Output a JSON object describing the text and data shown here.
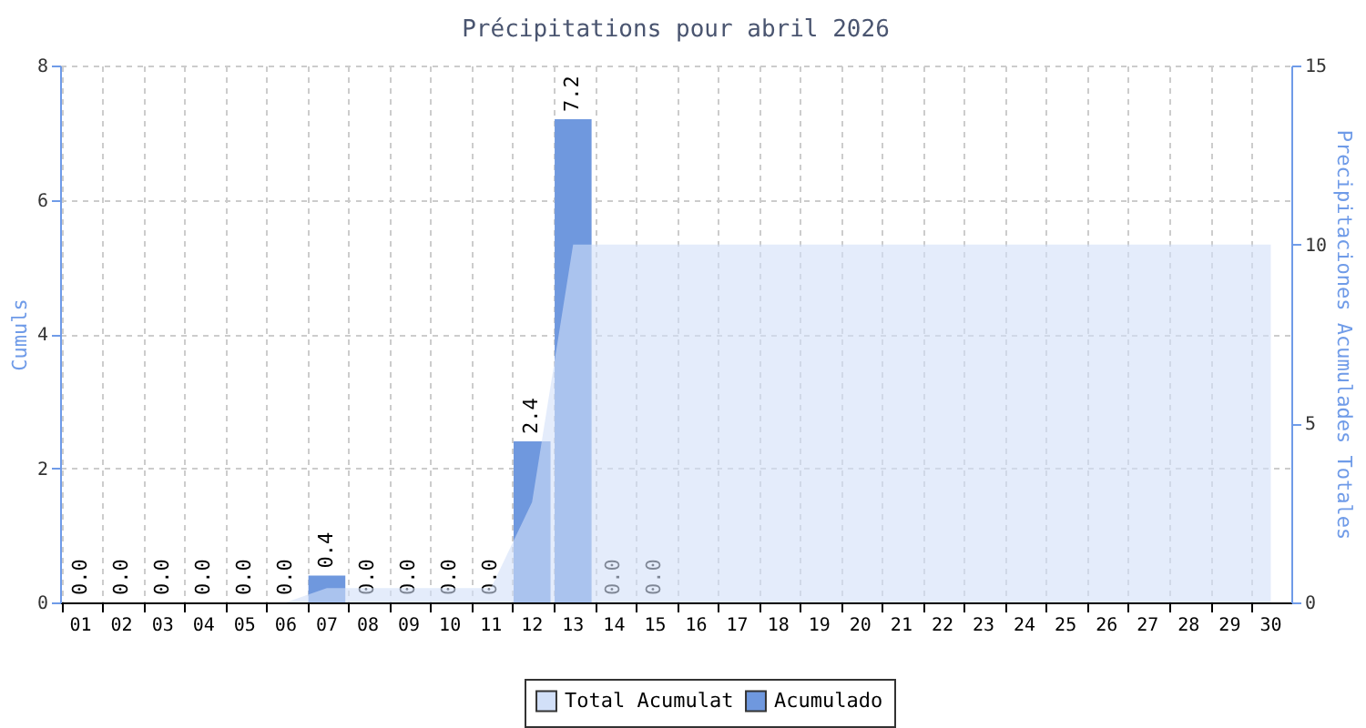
{
  "chart_data": {
    "type": "bar",
    "title": "Précipitations pour abril 2026",
    "ylabel": "Cumuls",
    "y2label": "Precipitaciones Acumulades Totales",
    "categories": [
      "01",
      "02",
      "03",
      "04",
      "05",
      "06",
      "07",
      "08",
      "09",
      "10",
      "11",
      "12",
      "13",
      "14",
      "15",
      "16",
      "17",
      "18",
      "19",
      "20",
      "21",
      "22",
      "23",
      "24",
      "25",
      "26",
      "27",
      "28",
      "29",
      "30"
    ],
    "series": [
      {
        "name": "Total Acumulat",
        "type": "area",
        "axis": "y2",
        "color": "#d2e0f8",
        "values": [
          0,
          0,
          0,
          0,
          0,
          0,
          0.4,
          0.4,
          0.4,
          0.4,
          0.4,
          2.8,
          10,
          10,
          10,
          10,
          10,
          10,
          10,
          10,
          10,
          10,
          10,
          10,
          10,
          10,
          10,
          10,
          10,
          10
        ]
      },
      {
        "name": "Acumulado",
        "color": "#6f98de",
        "values": [
          0,
          0,
          0,
          0,
          0,
          0,
          0.4,
          0,
          0,
          0,
          0,
          2.4,
          7.2,
          0,
          0,
          null,
          null,
          null,
          null,
          null,
          null,
          null,
          null,
          null,
          null,
          null,
          null,
          null,
          null,
          null
        ],
        "value_labels": [
          "0.0",
          "0.0",
          "0.0",
          "0.0",
          "0.0",
          "0.0",
          "0.4",
          "0.0",
          "0.0",
          "0.0",
          "0.0",
          "2.4",
          "7.2",
          "0.0",
          "0.0",
          null,
          null,
          null,
          null,
          null,
          null,
          null,
          null,
          null,
          null,
          null,
          null,
          null,
          null,
          null
        ]
      }
    ],
    "ylim": [
      0,
      8
    ],
    "yticks": [
      0,
      2,
      4,
      6,
      8
    ],
    "y2lim": [
      0,
      15
    ],
    "y2ticks": [
      0,
      5,
      10,
      15
    ],
    "grid": true,
    "legend": "bottom"
  }
}
